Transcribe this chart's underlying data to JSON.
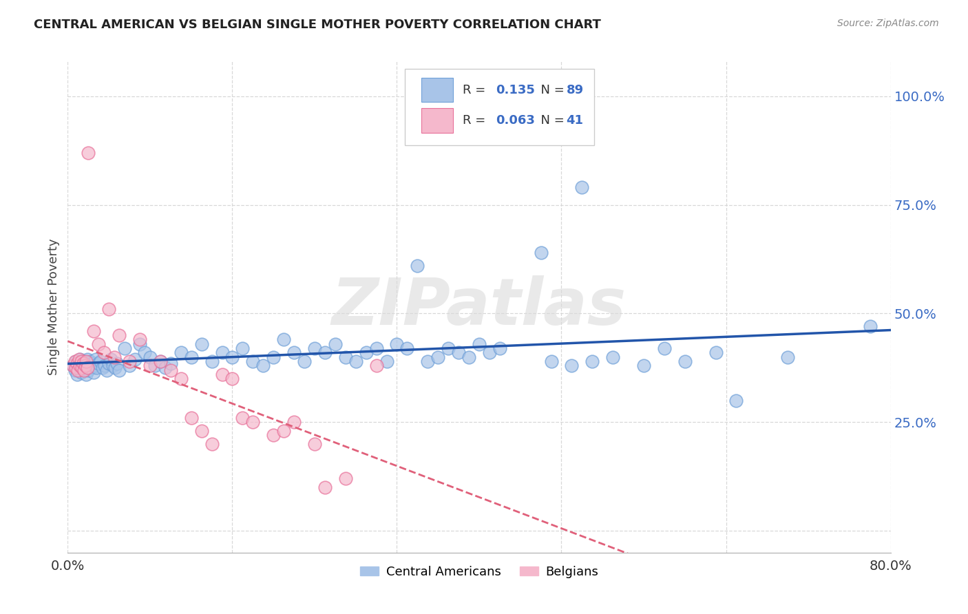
{
  "title": "CENTRAL AMERICAN VS BELGIAN SINGLE MOTHER POVERTY CORRELATION CHART",
  "source": "Source: ZipAtlas.com",
  "ylabel": "Single Mother Poverty",
  "yticks": [
    0.0,
    0.25,
    0.5,
    0.75,
    1.0
  ],
  "ytick_labels": [
    "",
    "25.0%",
    "50.0%",
    "75.0%",
    "100.0%"
  ],
  "xtick_labels": [
    "0.0%",
    "80.0%"
  ],
  "xlim": [
    0.0,
    0.8
  ],
  "ylim": [
    -0.05,
    1.08
  ],
  "ca_color": "#a8c4e8",
  "ca_edge_color": "#6fa0d8",
  "ca_line_color": "#2255aa",
  "belgian_color": "#f5b8cc",
  "belgian_edge_color": "#e87099",
  "belgian_line_color": "#e0607a",
  "legend_ca_R": "0.135",
  "legend_ca_N": "89",
  "legend_be_R": "0.063",
  "legend_be_N": "41",
  "watermark": "ZIPatlas",
  "background_color": "#ffffff",
  "grid_color": "#d8d8d8",
  "text_color": "#3a6bc4",
  "label_color": "#444444",
  "ca_x": [
    0.005,
    0.007,
    0.008,
    0.009,
    0.01,
    0.011,
    0.012,
    0.013,
    0.014,
    0.015,
    0.016,
    0.017,
    0.018,
    0.019,
    0.02,
    0.021,
    0.022,
    0.023,
    0.024,
    0.025,
    0.026,
    0.027,
    0.028,
    0.03,
    0.032,
    0.034,
    0.036,
    0.038,
    0.04,
    0.042,
    0.044,
    0.046,
    0.048,
    0.05,
    0.055,
    0.06,
    0.065,
    0.07,
    0.075,
    0.08,
    0.085,
    0.09,
    0.095,
    0.1,
    0.11,
    0.12,
    0.13,
    0.14,
    0.15,
    0.16,
    0.17,
    0.18,
    0.19,
    0.2,
    0.21,
    0.22,
    0.23,
    0.24,
    0.25,
    0.26,
    0.27,
    0.28,
    0.29,
    0.3,
    0.31,
    0.32,
    0.33,
    0.34,
    0.35,
    0.36,
    0.37,
    0.38,
    0.39,
    0.4,
    0.41,
    0.42,
    0.46,
    0.47,
    0.49,
    0.5,
    0.51,
    0.53,
    0.56,
    0.58,
    0.6,
    0.63,
    0.65,
    0.7,
    0.78
  ],
  "ca_y": [
    0.38,
    0.37,
    0.39,
    0.36,
    0.385,
    0.375,
    0.395,
    0.365,
    0.38,
    0.39,
    0.375,
    0.385,
    0.36,
    0.395,
    0.37,
    0.38,
    0.39,
    0.385,
    0.375,
    0.365,
    0.38,
    0.395,
    0.375,
    0.385,
    0.39,
    0.375,
    0.38,
    0.37,
    0.385,
    0.395,
    0.38,
    0.375,
    0.385,
    0.37,
    0.42,
    0.38,
    0.395,
    0.43,
    0.41,
    0.4,
    0.38,
    0.39,
    0.375,
    0.385,
    0.41,
    0.4,
    0.43,
    0.39,
    0.41,
    0.4,
    0.42,
    0.39,
    0.38,
    0.4,
    0.44,
    0.41,
    0.39,
    0.42,
    0.41,
    0.43,
    0.4,
    0.39,
    0.41,
    0.42,
    0.39,
    0.43,
    0.42,
    0.61,
    0.39,
    0.4,
    0.42,
    0.41,
    0.4,
    0.43,
    0.41,
    0.42,
    0.64,
    0.39,
    0.38,
    0.79,
    0.39,
    0.4,
    0.38,
    0.42,
    0.39,
    0.41,
    0.3,
    0.4,
    0.47
  ],
  "be_x": [
    0.005,
    0.007,
    0.008,
    0.009,
    0.01,
    0.011,
    0.012,
    0.013,
    0.014,
    0.015,
    0.016,
    0.017,
    0.018,
    0.019,
    0.02,
    0.025,
    0.03,
    0.035,
    0.04,
    0.045,
    0.05,
    0.06,
    0.07,
    0.08,
    0.09,
    0.1,
    0.11,
    0.12,
    0.13,
    0.14,
    0.15,
    0.16,
    0.17,
    0.18,
    0.2,
    0.21,
    0.22,
    0.24,
    0.25,
    0.27,
    0.3
  ],
  "be_y": [
    0.38,
    0.39,
    0.375,
    0.385,
    0.37,
    0.395,
    0.38,
    0.39,
    0.375,
    0.385,
    0.37,
    0.38,
    0.39,
    0.375,
    0.87,
    0.46,
    0.43,
    0.41,
    0.51,
    0.4,
    0.45,
    0.39,
    0.44,
    0.38,
    0.39,
    0.37,
    0.35,
    0.26,
    0.23,
    0.2,
    0.36,
    0.35,
    0.26,
    0.25,
    0.22,
    0.23,
    0.25,
    0.2,
    0.1,
    0.12,
    0.38
  ]
}
